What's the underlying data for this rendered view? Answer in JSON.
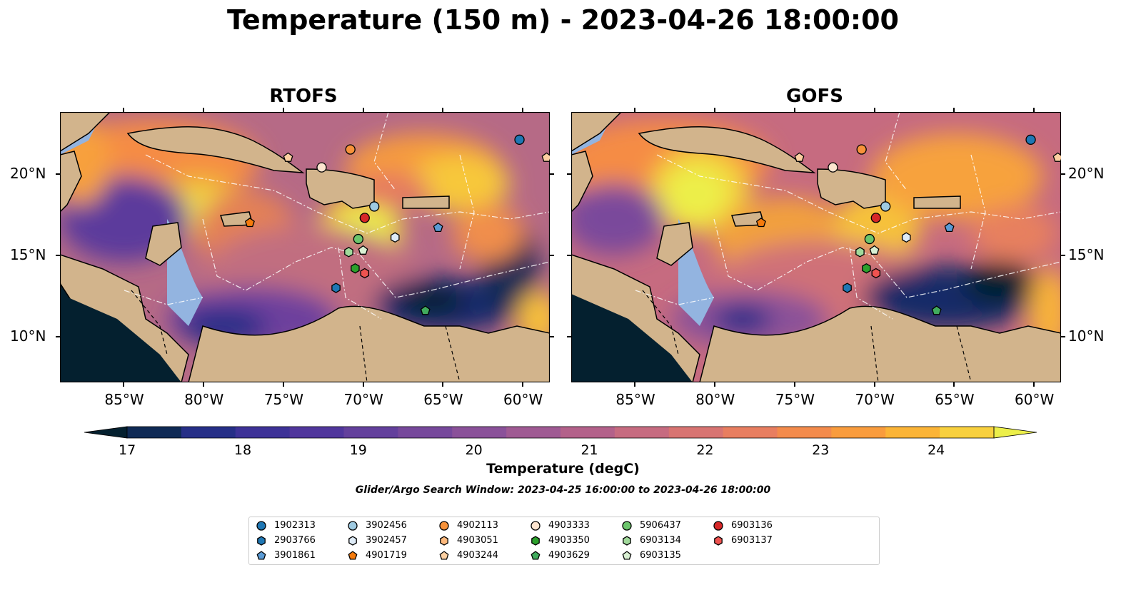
{
  "title": "Temperature (150 m) - 2023-04-26 18:00:00",
  "panels": [
    {
      "title": "RTOFS"
    },
    {
      "title": "GOFS"
    }
  ],
  "lon_ticks": [
    "85°W",
    "80°W",
    "75°W",
    "70°W",
    "65°W",
    "60°W"
  ],
  "lat_ticks": [
    "20°N",
    "15°N",
    "10°N"
  ],
  "map_extent": {
    "lon": [
      -89,
      -58.3
    ],
    "lat": [
      7.2,
      23.8
    ]
  },
  "colorbar": {
    "title": "Temperature (degC)",
    "ticks": [
      "17",
      "18",
      "19",
      "20",
      "21",
      "22",
      "23",
      "24"
    ],
    "range": [
      17,
      24.5
    ],
    "extend": "both",
    "colors": [
      "#04202f",
      "#0f2a55",
      "#262f87",
      "#3d3297",
      "#50369c",
      "#63409c",
      "#76489b",
      "#8a5199",
      "#9f5a93",
      "#b3618a",
      "#c66b80",
      "#d87472",
      "#e87e60",
      "#f38b4c",
      "#f99c3d",
      "#fbb437",
      "#f8d03e",
      "#ecef4a"
    ]
  },
  "search_window": "Glider/Argo Search Window: 2023-04-25 16:00:00 to 2023-04-26 18:00:00",
  "legend": [
    {
      "id": "1902313",
      "marker": "circle",
      "color": "#1f77b4"
    },
    {
      "id": "2903766",
      "marker": "hexagon",
      "color": "#1f77b4"
    },
    {
      "id": "3901861",
      "marker": "pentagon",
      "color": "#5b9bd5"
    },
    {
      "id": "3902456",
      "marker": "circle",
      "color": "#9ecae1"
    },
    {
      "id": "3902457",
      "marker": "hexagon",
      "color": "#deebf7"
    },
    {
      "id": "4901719",
      "marker": "pentagon",
      "color": "#f57b0c"
    },
    {
      "id": "4902113",
      "marker": "circle",
      "color": "#f7923a"
    },
    {
      "id": "4903051",
      "marker": "hexagon",
      "color": "#fdb97d"
    },
    {
      "id": "4903244",
      "marker": "pentagon",
      "color": "#fdd0a2"
    },
    {
      "id": "4903333",
      "marker": "circle",
      "color": "#fde4cf"
    },
    {
      "id": "4903350",
      "marker": "hexagon",
      "color": "#2ca02c"
    },
    {
      "id": "4903629",
      "marker": "pentagon",
      "color": "#41ab5d"
    },
    {
      "id": "5906437",
      "marker": "circle",
      "color": "#6cc56c"
    },
    {
      "id": "6903134",
      "marker": "hexagon",
      "color": "#a1d99b"
    },
    {
      "id": "6903135",
      "marker": "pentagon",
      "color": "#d9f0d3"
    },
    {
      "id": "6903136",
      "marker": "circle",
      "color": "#d62728"
    },
    {
      "id": "6903137",
      "marker": "hexagon",
      "color": "#ef5350"
    }
  ],
  "floats": [
    {
      "id": "1902313",
      "lon": -60.2,
      "lat": 22.1
    },
    {
      "id": "4903244",
      "lon": -58.5,
      "lat": 21.0
    },
    {
      "id": "4902113",
      "lon": -70.8,
      "lat": 21.5
    },
    {
      "id": "4903244",
      "lon": -74.7,
      "lat": 21.0
    },
    {
      "id": "4903333",
      "lon": -72.6,
      "lat": 20.4
    },
    {
      "id": "3902456",
      "lon": -69.3,
      "lat": 18.0
    },
    {
      "id": "6903136",
      "lon": -69.9,
      "lat": 17.3
    },
    {
      "id": "4901719",
      "lon": -77.1,
      "lat": 17.0
    },
    {
      "id": "5906437",
      "lon": -70.3,
      "lat": 16.0
    },
    {
      "id": "3902457",
      "lon": -68.0,
      "lat": 16.1
    },
    {
      "id": "3901861",
      "lon": -65.3,
      "lat": 16.7
    },
    {
      "id": "6903134",
      "lon": -70.9,
      "lat": 15.2
    },
    {
      "id": "6903135",
      "lon": -70.0,
      "lat": 15.3
    },
    {
      "id": "4903350",
      "lon": -70.5,
      "lat": 14.2
    },
    {
      "id": "6903137",
      "lon": -69.9,
      "lat": 13.9
    },
    {
      "id": "2903766",
      "lon": -71.7,
      "lat": 13.0
    },
    {
      "id": "4903629",
      "lon": -66.1,
      "lat": 11.6
    }
  ]
}
